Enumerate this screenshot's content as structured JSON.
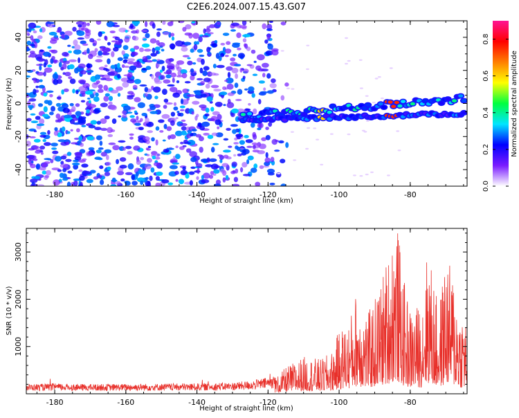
{
  "chart_data": [
    {
      "type": "heatmap",
      "title": "C2E6.2024.007.15.43.G07",
      "xlabel": "Height of straight line (km)",
      "ylabel": "Frequency (Hz)",
      "xlim": [
        -188,
        -64
      ],
      "ylim": [
        -50,
        50
      ],
      "x_ticks": [
        -180,
        -160,
        -140,
        -120,
        -100,
        -80
      ],
      "y_ticks": [
        -40,
        -20,
        0,
        20,
        40
      ],
      "colorbar": {
        "label": "Normalized spectral amplitude",
        "range": [
          0.0,
          0.9
        ],
        "ticks": [
          0.0,
          0.2,
          0.4,
          0.6,
          0.8
        ],
        "colors": [
          "#ffffff",
          "#7a1cff",
          "#0000ff",
          "#00e5ff",
          "#00ff40",
          "#ffff00",
          "#ff7f00",
          "#ff0000",
          "#ff1493"
        ]
      },
      "features": {
        "noise_region_x": [
          -188,
          -118
        ],
        "signal_track": {
          "x_range": [
            -127,
            -64
          ],
          "frequency_start": -8,
          "frequency_end": 3,
          "secondary_band_frequency": -10,
          "peak_amplitude": 0.75,
          "peak_x": -85
        }
      }
    },
    {
      "type": "line",
      "xlabel": "Height of straight line (km)",
      "ylabel": "SNR (10 * v/v)",
      "xlim": [
        -188,
        -64
      ],
      "ylim": [
        0,
        3500
      ],
      "x_ticks": [
        -180,
        -160,
        -140,
        -120,
        -100,
        -80
      ],
      "y_ticks": [
        1000,
        2000,
        3000
      ],
      "line_color": "#e8302a",
      "series": [
        {
          "x": [
            -188,
            -180,
            -170,
            -160,
            -150,
            -140,
            -130,
            -125,
            -120,
            -117,
            -115,
            -110,
            -105,
            -102,
            -100,
            -97,
            -95,
            -92,
            -90,
            -88,
            -86,
            -84,
            -82,
            -80,
            -77,
            -75,
            -72,
            -70,
            -68,
            -66,
            -64
          ],
          "y": [
            170,
            180,
            170,
            175,
            180,
            185,
            200,
            230,
            290,
            350,
            500,
            700,
            650,
            800,
            1200,
            1400,
            2000,
            1500,
            1800,
            2200,
            2700,
            3450,
            2200,
            1600,
            1700,
            2800,
            1600,
            2600,
            2300,
            1600,
            1500
          ]
        }
      ]
    }
  ]
}
